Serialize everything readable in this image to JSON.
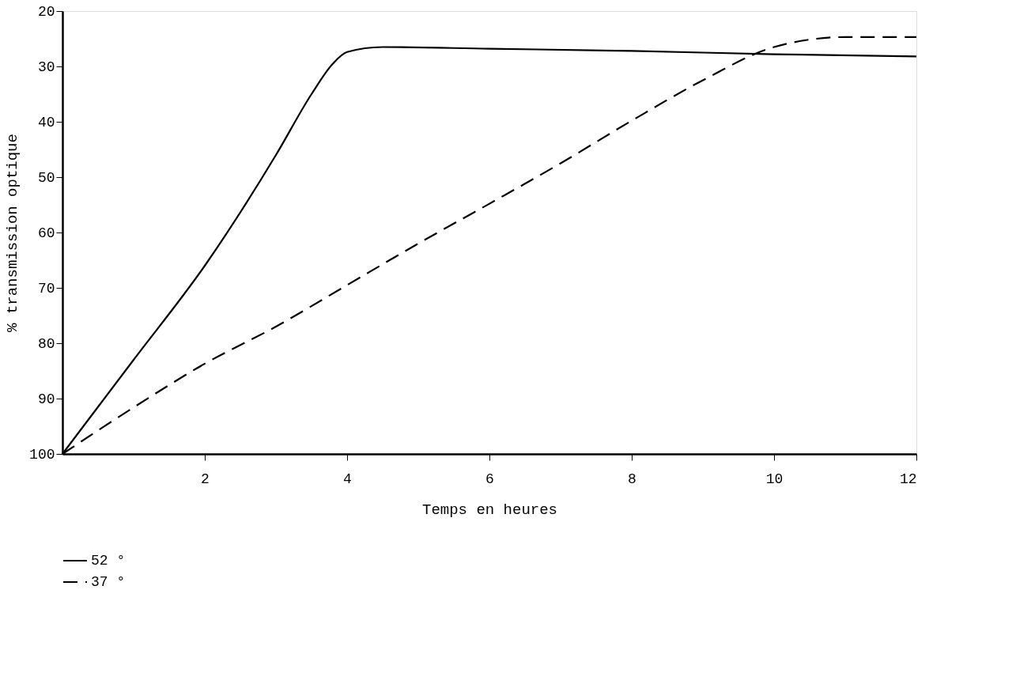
{
  "chart_data": {
    "type": "line",
    "xlabel": "Temps en heures",
    "ylabel": "% transmission optique",
    "xlim": [
      0,
      12
    ],
    "xticks": [
      2,
      4,
      6,
      8,
      10,
      12
    ],
    "ylim": [
      100,
      20
    ],
    "yticks": [
      20,
      30,
      40,
      50,
      60,
      70,
      80,
      90,
      100
    ],
    "grid": false,
    "legend": "bottom left",
    "marker": "none",
    "series": [
      {
        "name": "52 °",
        "color": "#000000",
        "line_style": "solid",
        "x": [
          0,
          1,
          2,
          3,
          3.5,
          3.8,
          4,
          4.5,
          6,
          8,
          10,
          12
        ],
        "values": [
          100,
          83,
          66,
          46,
          35,
          29.5,
          27.4,
          26.5,
          26.8,
          27.2,
          27.8,
          28.2
        ]
      },
      {
        "name": "37 °",
        "color": "#000000",
        "line_style": "dashed",
        "x": [
          0,
          1,
          2,
          3,
          4,
          5,
          6,
          7,
          8,
          9,
          10,
          11,
          12
        ],
        "values": [
          100,
          91.6,
          83.7,
          77,
          69.5,
          62,
          54.8,
          47.5,
          39.8,
          32.5,
          26.5,
          24.7,
          24.7
        ]
      }
    ]
  }
}
